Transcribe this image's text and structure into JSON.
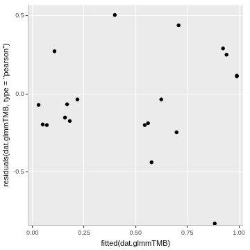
{
  "chart_data": {
    "type": "scatter",
    "x_label": "fitted(dat.glmmTMB)",
    "y_label": "residuals(dat.glmmTMB, type = \"pearson\")",
    "x": [
      0.03,
      0.05,
      0.07,
      0.107,
      0.158,
      0.168,
      0.181,
      0.218,
      0.399,
      0.544,
      0.56,
      0.577,
      0.624,
      0.698,
      0.708,
      0.883,
      0.923,
      0.94,
      0.99,
      0.99
    ],
    "values": [
      -0.071,
      -0.196,
      -0.2,
      0.272,
      -0.152,
      -0.067,
      -0.174,
      -0.036,
      0.504,
      -0.2,
      -0.188,
      -0.438,
      -0.036,
      -0.246,
      0.438,
      -0.83,
      0.29,
      0.25,
      0.116,
      0.112
    ],
    "color": "#000000",
    "marker": "circle",
    "xlim": [
      -0.02,
      1.02
    ],
    "ylim": [
      -0.839,
      0.567
    ],
    "xticks": [
      {
        "value": 0,
        "label": "0.00"
      },
      0.25,
      {
        "value": 0.5,
        "label": "0.50"
      },
      0.75,
      {
        "value": 1,
        "label": "1.00"
      }
    ],
    "yticks": [
      -0.5,
      {
        "value": 0,
        "label": "0.0"
      },
      0.5
    ],
    "grid": true
  }
}
